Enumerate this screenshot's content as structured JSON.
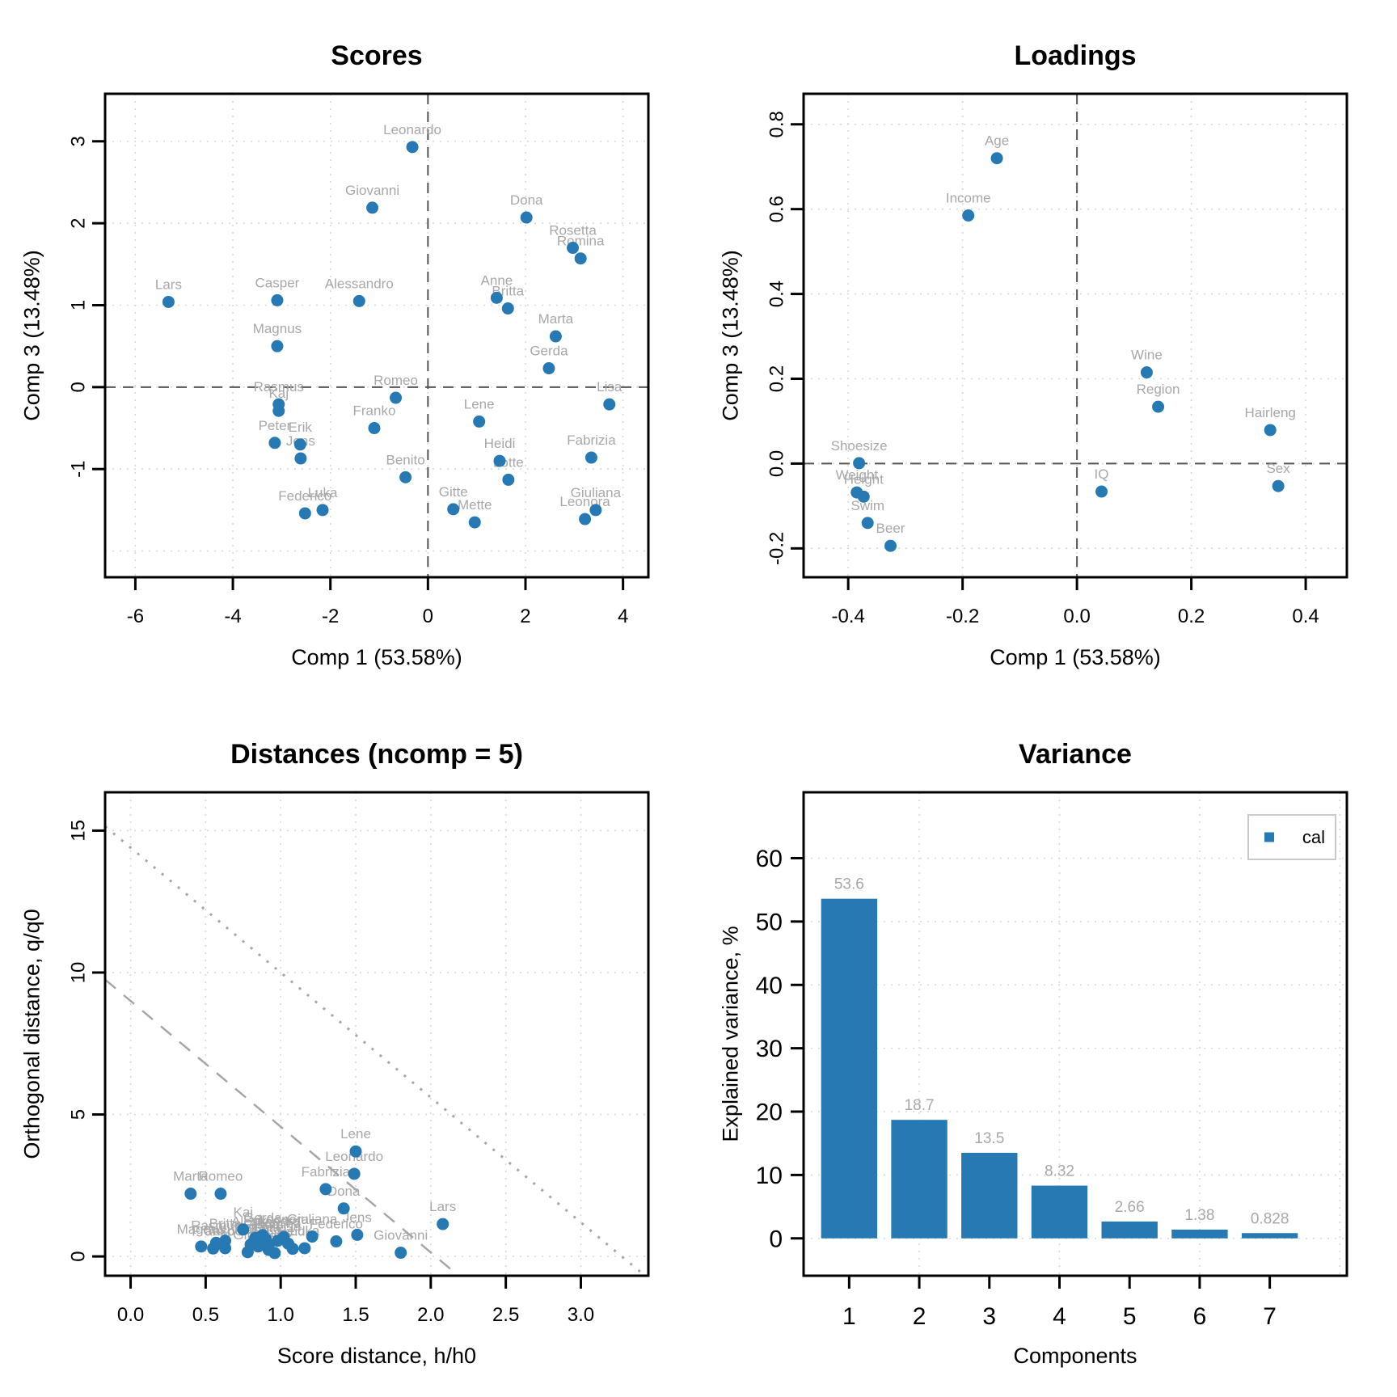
{
  "styles": {
    "background": "#FFFFFF",
    "point_color": "#2679B2",
    "bar_color": "#2679B2",
    "point_label_color": "#A8A8A8",
    "bar_label_color": "#A8A8A8",
    "grid_color": "#D9D9D9",
    "zero_line_color": "#545454",
    "limit_line_color": "#A6A6A6",
    "box_color": "#000000",
    "text_color": "#000000",
    "legend_border_color": "#C9C9C9"
  },
  "chart_data": [
    {
      "id": "scores",
      "type": "scatter",
      "title": "Scores",
      "xlabel": "Comp 1 (53.58%)",
      "ylabel": "Comp 3 (13.48%)",
      "xlim": [
        -6.62,
        4.52
      ],
      "ylim": [
        -2.32,
        3.58
      ],
      "xticks": [
        -6,
        -4,
        -2,
        0,
        2,
        4
      ],
      "xtick_labels": [
        "-6",
        "-4",
        "-2",
        "0",
        "2",
        "4"
      ],
      "yticks": [
        -1,
        0,
        1,
        2,
        3
      ],
      "ytick_labels": [
        "-1",
        "0",
        "1",
        "2",
        "3"
      ],
      "xgrid": [
        -6,
        -4,
        -2,
        0,
        2,
        4
      ],
      "ygrid": [
        -2,
        -1,
        0,
        1,
        2,
        3
      ],
      "ytick_rotated": true,
      "zero_lines": true,
      "grid": true,
      "points": [
        {
          "label": "Lars",
          "x": -5.32,
          "y": 1.04
        },
        {
          "label": "Casper",
          "x": -3.09,
          "y": 1.06
        },
        {
          "label": "Magnus",
          "x": -3.09,
          "y": 0.5
        },
        {
          "label": "Rasmus",
          "x": -3.06,
          "y": -0.21
        },
        {
          "label": "Kaj",
          "x": -3.06,
          "y": -0.29
        },
        {
          "label": "Peter",
          "x": -3.14,
          "y": -0.68
        },
        {
          "label": "Erik",
          "x": -2.62,
          "y": -0.7
        },
        {
          "label": "Jens",
          "x": -2.61,
          "y": -0.87
        },
        {
          "label": "Federico",
          "x": -2.52,
          "y": -1.54
        },
        {
          "label": "Luka",
          "x": -2.16,
          "y": -1.5
        },
        {
          "label": "Giovanni",
          "x": -1.14,
          "y": 2.19
        },
        {
          "label": "Alessandro",
          "x": -1.41,
          "y": 1.05
        },
        {
          "label": "Franko",
          "x": -1.1,
          "y": -0.5
        },
        {
          "label": "Romeo",
          "x": -0.66,
          "y": -0.13
        },
        {
          "label": "Leonardo",
          "x": -0.32,
          "y": 2.93
        },
        {
          "label": "Benito",
          "x": -0.46,
          "y": -1.1
        },
        {
          "label": "Gitte",
          "x": 0.52,
          "y": -1.49
        },
        {
          "label": "Mette",
          "x": 0.96,
          "y": -1.65
        },
        {
          "label": "Lene",
          "x": 1.05,
          "y": -0.42
        },
        {
          "label": "Anne",
          "x": 1.41,
          "y": 1.09
        },
        {
          "label": "Britta",
          "x": 1.64,
          "y": 0.96
        },
        {
          "label": "Heidi",
          "x": 1.47,
          "y": -0.9
        },
        {
          "label": "Lotte",
          "x": 1.65,
          "y": -1.13
        },
        {
          "label": "Dona",
          "x": 2.02,
          "y": 2.07
        },
        {
          "label": "Gerda",
          "x": 2.48,
          "y": 0.23
        },
        {
          "label": "Marta",
          "x": 2.62,
          "y": 0.62
        },
        {
          "label": "Rosetta",
          "x": 2.97,
          "y": 1.7
        },
        {
          "label": "Romina",
          "x": 3.13,
          "y": 1.57
        },
        {
          "label": "Fabrizia",
          "x": 3.35,
          "y": -0.86
        },
        {
          "label": "Leonora",
          "x": 3.22,
          "y": -1.61
        },
        {
          "label": "Giuliana",
          "x": 3.44,
          "y": -1.5
        },
        {
          "label": "Lisa",
          "x": 3.72,
          "y": -0.21
        }
      ]
    },
    {
      "id": "loadings",
      "type": "scatter",
      "title": "Loadings",
      "xlabel": "Comp 1 (53.58%)",
      "ylabel": "Comp 3 (13.48%)",
      "xlim": [
        -0.478,
        0.472
      ],
      "ylim": [
        -0.268,
        0.872
      ],
      "xticks": [
        -0.4,
        -0.2,
        0.0,
        0.2,
        0.4
      ],
      "xtick_labels": [
        "-0.4",
        "-0.2",
        "0.0",
        "0.2",
        "0.4"
      ],
      "yticks": [
        -0.2,
        0.0,
        0.2,
        0.4,
        0.6,
        0.8
      ],
      "ytick_labels": [
        "-0.2",
        "0.0",
        "0.2",
        "0.4",
        "0.6",
        "0.8"
      ],
      "xgrid": [
        -0.4,
        -0.2,
        0.0,
        0.2,
        0.4
      ],
      "ygrid": [
        -0.2,
        0.0,
        0.2,
        0.4,
        0.6,
        0.8
      ],
      "ytick_rotated": true,
      "zero_lines": true,
      "grid": true,
      "points": [
        {
          "label": "Age",
          "x": -0.14,
          "y": 0.72
        },
        {
          "label": "Income",
          "x": -0.19,
          "y": 0.585
        },
        {
          "label": "Wine",
          "x": 0.122,
          "y": 0.215
        },
        {
          "label": "Region",
          "x": 0.142,
          "y": 0.134
        },
        {
          "label": "Hairleng",
          "x": 0.338,
          "y": 0.079
        },
        {
          "label": "Shoesize",
          "x": -0.381,
          "y": 0.001
        },
        {
          "label": "Weight",
          "x": -0.385,
          "y": -0.068
        },
        {
          "label": "Height",
          "x": -0.373,
          "y": -0.078
        },
        {
          "label": "Swim",
          "x": -0.366,
          "y": -0.14
        },
        {
          "label": "Beer",
          "x": -0.326,
          "y": -0.194
        },
        {
          "label": "IQ",
          "x": 0.043,
          "y": -0.066
        },
        {
          "label": "Sex",
          "x": 0.352,
          "y": -0.053
        }
      ]
    },
    {
      "id": "distances",
      "type": "scatter",
      "title": "Distances (ncomp = 5)",
      "xlabel": "Score distance, h/h0",
      "ylabel": "Orthogonal distance, q/q0",
      "xlim": [
        -0.17,
        3.45
      ],
      "ylim": [
        -0.68,
        16.35
      ],
      "xticks": [
        0.0,
        0.5,
        1.0,
        1.5,
        2.0,
        2.5,
        3.0
      ],
      "xtick_labels": [
        "0.0",
        "0.5",
        "1.0",
        "1.5",
        "2.0",
        "2.5",
        "3.0"
      ],
      "yticks": [
        0,
        5,
        10,
        15
      ],
      "ytick_labels": [
        "0",
        "5",
        "10",
        "15"
      ],
      "xgrid": [
        0.0,
        0.5,
        1.0,
        1.5,
        2.0,
        2.5,
        3.0
      ],
      "ygrid": [
        0,
        5,
        10,
        15
      ],
      "ytick_rotated": true,
      "zero_lines": false,
      "grid": true,
      "limit_lines": [
        {
          "name": "extreme-limit",
          "style": "dashed",
          "intercept": 9.0,
          "slope": -4.43
        },
        {
          "name": "outlier-limit",
          "style": "dotted",
          "intercept": 14.4,
          "slope": -4.4
        }
      ],
      "points": [
        {
          "label": "Marta",
          "x": 0.4,
          "y": 2.21
        },
        {
          "label": "Romeo",
          "x": 0.6,
          "y": 2.21
        },
        {
          "label": "Magnus",
          "x": 0.47,
          "y": 0.35
        },
        {
          "label": "Franko",
          "x": 0.55,
          "y": 0.28
        },
        {
          "label": "Rasmus",
          "x": 0.57,
          "y": 0.48
        },
        {
          "label": "Britta",
          "x": 0.63,
          "y": 0.55
        },
        {
          "label": "Casper",
          "x": 0.63,
          "y": 0.29
        },
        {
          "label": "Kaj",
          "x": 0.75,
          "y": 0.95
        },
        {
          "label": "Gitte",
          "x": 0.78,
          "y": 0.15
        },
        {
          "label": "Peter",
          "x": 0.8,
          "y": 0.42
        },
        {
          "label": "Erik",
          "x": 0.83,
          "y": 0.65
        },
        {
          "label": "Rosetta",
          "x": 0.85,
          "y": 0.35
        },
        {
          "label": "Gerda",
          "x": 0.88,
          "y": 0.75
        },
        {
          "label": "Anne",
          "x": 0.89,
          "y": 0.52
        },
        {
          "label": "Alessandro",
          "x": 0.9,
          "y": 0.62
        },
        {
          "label": "Lotte",
          "x": 0.92,
          "y": 0.4
        },
        {
          "label": "Benito",
          "x": 0.92,
          "y": 0.23
        },
        {
          "label": "Mette",
          "x": 0.96,
          "y": 0.12
        },
        {
          "label": "Romina",
          "x": 0.98,
          "y": 0.55
        },
        {
          "label": "Leonora",
          "x": 1.02,
          "y": 0.68
        },
        {
          "label": "Lisa",
          "x": 1.05,
          "y": 0.45
        },
        {
          "label": "Heidi",
          "x": 1.08,
          "y": 0.27
        },
        {
          "label": "Luka",
          "x": 1.16,
          "y": 0.29
        },
        {
          "label": "Giuliana",
          "x": 1.21,
          "y": 0.7
        },
        {
          "label": "Fabrizia",
          "x": 1.3,
          "y": 2.37
        },
        {
          "label": "Federico",
          "x": 1.37,
          "y": 0.53
        },
        {
          "label": "Dona",
          "x": 1.42,
          "y": 1.69
        },
        {
          "label": "Leonardo",
          "x": 1.49,
          "y": 2.91
        },
        {
          "label": "Lene",
          "x": 1.5,
          "y": 3.7
        },
        {
          "label": "Jens",
          "x": 1.51,
          "y": 0.76
        },
        {
          "label": "Giovanni",
          "x": 1.8,
          "y": 0.13
        },
        {
          "label": "Lars",
          "x": 2.08,
          "y": 1.14
        }
      ]
    },
    {
      "id": "variance",
      "type": "bar",
      "title": "Variance",
      "xlabel": "Components",
      "ylabel": "Explained variance, %",
      "xlim": [
        0.35,
        8.1
      ],
      "ylim": [
        -5.9,
        70.4
      ],
      "xticks": [
        1,
        2,
        3,
        4,
        5,
        6,
        7
      ],
      "xtick_labels": [
        "1",
        "2",
        "3",
        "4",
        "5",
        "6",
        "7"
      ],
      "yticks": [
        0,
        10,
        20,
        30,
        40,
        50,
        60
      ],
      "ytick_labels": [
        "0",
        "10",
        "20",
        "30",
        "40",
        "50",
        "60"
      ],
      "xgrid": [
        2,
        4,
        6,
        8
      ],
      "ygrid": [
        0,
        10,
        20,
        30,
        40,
        50,
        60
      ],
      "ytick_rotated": false,
      "zero_lines": false,
      "grid": true,
      "categories": [
        "1",
        "2",
        "3",
        "4",
        "5",
        "6",
        "7"
      ],
      "values": [
        53.6,
        18.7,
        13.5,
        8.32,
        2.66,
        1.38,
        0.828
      ],
      "value_labels": [
        "53.6",
        "18.7",
        "13.5",
        "8.32",
        "2.66",
        "1.38",
        "0.828"
      ],
      "bar_width": 0.8,
      "legend": {
        "label": "cal",
        "position": "topright"
      }
    }
  ]
}
